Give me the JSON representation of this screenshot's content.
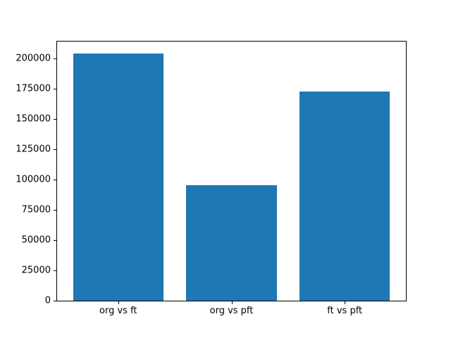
{
  "chart_data": {
    "type": "bar",
    "title": "",
    "xlabel": "",
    "ylabel": "",
    "categories": [
      "org vs ft",
      "org vs pft",
      "ft vs pft"
    ],
    "values": [
      204300,
      95300,
      172600
    ],
    "yticks": [
      0,
      25000,
      50000,
      75000,
      100000,
      125000,
      150000,
      175000,
      200000
    ],
    "ylim": [
      0,
      214000
    ],
    "xlim": [
      -0.54,
      2.54
    ],
    "bar_width": 0.8,
    "bar_color": "#1f77b4",
    "background": "#ffffff",
    "frame_color": "#000000",
    "grid": false,
    "legend": false
  }
}
